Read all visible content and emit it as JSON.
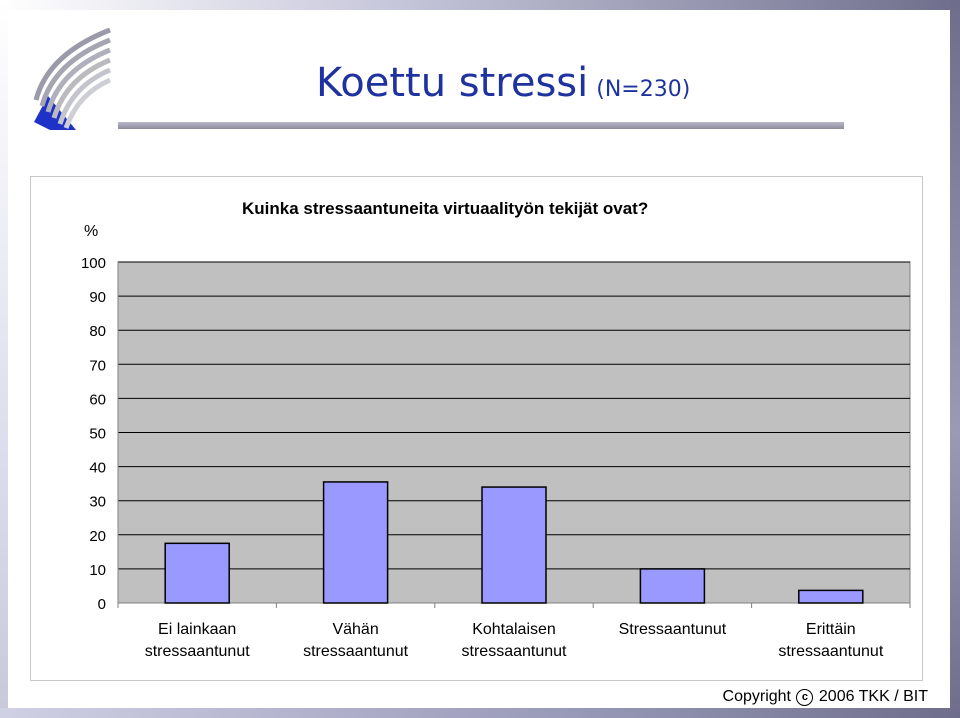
{
  "slide": {
    "title": "Koettu stressi",
    "subtitle": "(N=230)",
    "copyright_prefix": "Copyright",
    "copyright_suffix": "2006 TKK / BIT",
    "copyright_symbol": "c",
    "logo_icon": "tkk-logo-icon",
    "accent_color": "#1e32a0"
  },
  "chart_data": {
    "type": "bar",
    "title": "Kuinka stressaantuneita virtuaalityön tekijät ovat?",
    "ylabel": "%",
    "xlabel": "",
    "ylim": [
      0,
      100
    ],
    "yticks": [
      0,
      10,
      20,
      30,
      40,
      50,
      60,
      70,
      80,
      90,
      100
    ],
    "grid": true,
    "categories": [
      [
        "Ei lainkaan",
        "stressaantunut"
      ],
      [
        "Vähän",
        "stressaantunut"
      ],
      [
        "Kohtalaisen",
        "stressaantunut"
      ],
      [
        "Stressaantunut"
      ],
      [
        "Erittäin",
        "stressaantunut"
      ]
    ],
    "values": [
      17.5,
      35.5,
      34,
      10,
      3.7
    ],
    "bar_color": "#9999ff",
    "plot_background": "#c0c0c0",
    "gridline_color": "#000000"
  }
}
